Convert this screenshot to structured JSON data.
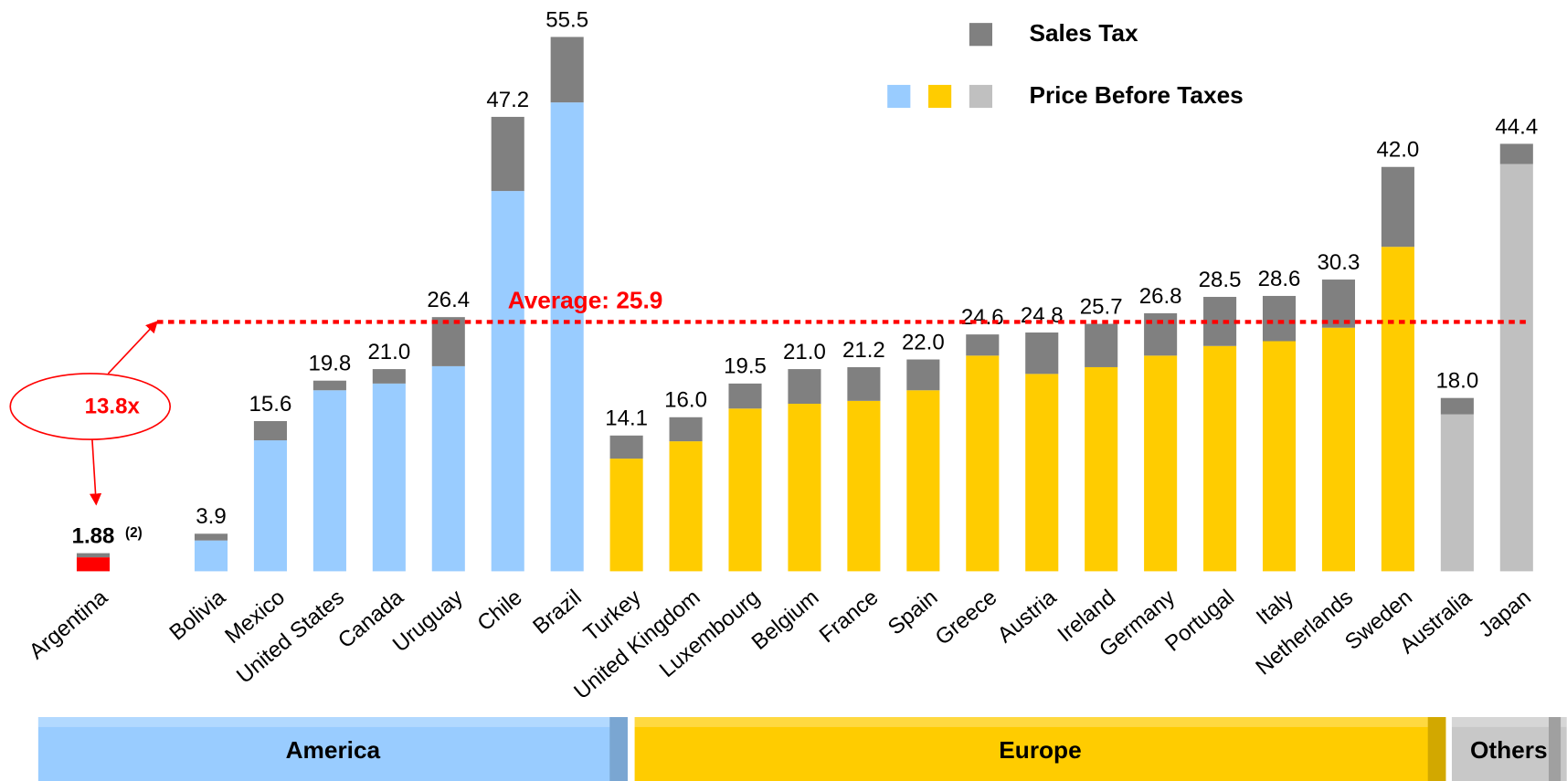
{
  "chart_data": {
    "type": "stacked_bar",
    "categories": [
      "Argentina",
      "Bolivia",
      "Mexico",
      "United States",
      "Canada",
      "Uruguay",
      "Chile",
      "Brazil",
      "Turkey",
      "United Kingdom",
      "Luxembourg",
      "Belgium",
      "France",
      "Spain",
      "Greece",
      "Austria",
      "Ireland",
      "Germany",
      "Portugal",
      "Italy",
      "Netherlands",
      "Sweden",
      "Australia",
      "Japan"
    ],
    "series": [
      {
        "name": "Price Before Taxes",
        "colors": [
          "#ff0000",
          "#99ccff",
          "#99ccff",
          "#99ccff",
          "#99ccff",
          "#99ccff",
          "#99ccff",
          "#99ccff",
          "#ffcc00",
          "#ffcc00",
          "#ffcc00",
          "#ffcc00",
          "#ffcc00",
          "#ffcc00",
          "#ffcc00",
          "#ffcc00",
          "#ffcc00",
          "#ffcc00",
          "#ffcc00",
          "#ffcc00",
          "#ffcc00",
          "#ffcc00",
          "#c0c0c0",
          "#c0c0c0"
        ],
        "legend_colors": [
          "#99ccff",
          "#ffcc00",
          "#c0c0c0"
        ],
        "values": [
          1.45,
          3.2,
          13.6,
          18.8,
          19.5,
          21.3,
          39.5,
          48.7,
          11.7,
          13.5,
          16.9,
          17.4,
          17.7,
          18.8,
          22.4,
          20.5,
          21.2,
          22.4,
          23.4,
          23.9,
          25.3,
          33.7,
          16.3,
          42.3
        ]
      },
      {
        "name": "Sales Tax",
        "color": "#808080",
        "values": [
          0.43,
          0.7,
          2.0,
          1.0,
          1.5,
          5.1,
          7.7,
          6.8,
          2.4,
          2.5,
          2.6,
          3.6,
          3.5,
          3.2,
          2.2,
          4.3,
          4.5,
          4.4,
          5.1,
          4.7,
          5.0,
          8.3,
          1.7,
          2.1
        ]
      }
    ],
    "totals": [
      1.88,
      3.9,
      15.6,
      19.8,
      21.0,
      26.4,
      47.2,
      55.5,
      14.1,
      16.0,
      19.5,
      21.0,
      21.2,
      22.0,
      24.6,
      24.8,
      25.7,
      26.8,
      28.5,
      28.6,
      30.3,
      42.0,
      18.0,
      44.4
    ],
    "total_labels": [
      "1.88",
      "3.9",
      "15.6",
      "19.8",
      "21.0",
      "26.4",
      "47.2",
      "55.5",
      "14.1",
      "16.0",
      "19.5",
      "21.0",
      "21.2",
      "22.0",
      "24.6",
      "24.8",
      "25.7",
      "26.8",
      "28.5",
      "28.6",
      "30.3",
      "42.0",
      "18.0",
      "44.4"
    ],
    "footnote": "(2)",
    "average": 25.9,
    "average_label": "Average: 25.9",
    "annotation": "13.8x",
    "groups": [
      "America",
      "Europe",
      "Others"
    ]
  }
}
